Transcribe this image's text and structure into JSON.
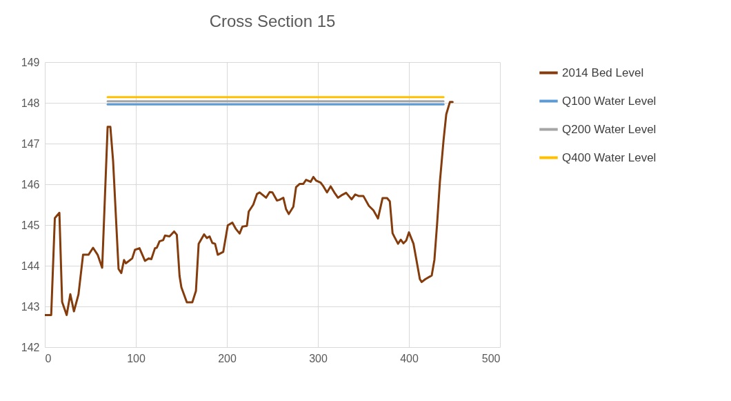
{
  "chart_data": {
    "type": "line",
    "title": "Cross Section 15",
    "xlim": [
      0,
      500
    ],
    "xticks": [
      0,
      100,
      200,
      300,
      400,
      500
    ],
    "ylim": [
      142,
      149
    ],
    "yticks": [
      142,
      143,
      144,
      145,
      146,
      147,
      148,
      149
    ],
    "grid": true,
    "legend": "right",
    "marker": "none",
    "line_style": "solid",
    "series": [
      {
        "name": "2014 Bed Level",
        "color": "#843c0c",
        "x": [
          0,
          7,
          11,
          16,
          19,
          24,
          28,
          32,
          37,
          42,
          48,
          53,
          58,
          63,
          69,
          72,
          75,
          81,
          84,
          87,
          89,
          96,
          99,
          104,
          110,
          114,
          117,
          121,
          123,
          126,
          130,
          132,
          137,
          142,
          145,
          148,
          150,
          156,
          162,
          166,
          169,
          175,
          178,
          181,
          184,
          187,
          190,
          196,
          201,
          206,
          210,
          214,
          217,
          222,
          224,
          229,
          233,
          236,
          243,
          247,
          250,
          255,
          258,
          262,
          265,
          268,
          273,
          276,
          280,
          284,
          287,
          292,
          295,
          298,
          303,
          306,
          310,
          314,
          318,
          322,
          326,
          331,
          337,
          341,
          345,
          350,
          356,
          361,
          366,
          371,
          376,
          379,
          382,
          384,
          388,
          391,
          394,
          397,
          400,
          405,
          408,
          412,
          414,
          418,
          425,
          428,
          431,
          434,
          438,
          441,
          445,
          448
        ],
        "values": [
          142.79,
          142.79,
          145.17,
          145.3,
          143.11,
          142.79,
          143.3,
          142.88,
          143.3,
          144.27,
          144.27,
          144.44,
          144.27,
          143.95,
          147.41,
          147.41,
          146.57,
          143.92,
          143.82,
          144.14,
          144.06,
          144.18,
          144.39,
          144.43,
          144.12,
          144.18,
          144.16,
          144.43,
          144.44,
          144.6,
          144.63,
          144.74,
          144.72,
          144.84,
          144.76,
          143.75,
          143.47,
          143.1,
          143.1,
          143.38,
          144.54,
          144.77,
          144.68,
          144.72,
          144.56,
          144.54,
          144.27,
          144.34,
          144.99,
          145.06,
          144.9,
          144.79,
          144.96,
          144.98,
          145.33,
          145.5,
          145.76,
          145.8,
          145.67,
          145.81,
          145.8,
          145.6,
          145.62,
          145.67,
          145.39,
          145.27,
          145.45,
          145.93,
          146.01,
          146.01,
          146.11,
          146.06,
          146.18,
          146.09,
          146.04,
          145.95,
          145.8,
          145.95,
          145.8,
          145.67,
          145.73,
          145.79,
          145.63,
          145.75,
          145.71,
          145.71,
          145.47,
          145.36,
          145.16,
          145.66,
          145.66,
          145.58,
          144.8,
          144.71,
          144.54,
          144.64,
          144.55,
          144.62,
          144.82,
          144.54,
          144.17,
          143.67,
          143.6,
          143.67,
          143.76,
          144.15,
          145.05,
          146.06,
          147.08,
          147.72,
          148.02,
          148.02
        ]
      },
      {
        "name": "Q100 Water Level",
        "color": "#5b9bd5",
        "x": [
          69,
          438
        ],
        "values": [
          147.96,
          147.96
        ]
      },
      {
        "name": "Q200 Water Level",
        "color": "#a5a5a5",
        "x": [
          69,
          438
        ],
        "values": [
          148.04,
          148.04
        ]
      },
      {
        "name": "Q400 Water Level",
        "color": "#ffc000",
        "x": [
          69,
          438
        ],
        "values": [
          148.14,
          148.14
        ]
      }
    ]
  }
}
